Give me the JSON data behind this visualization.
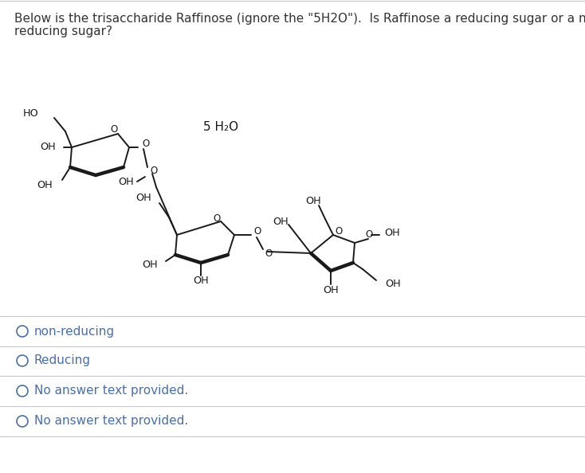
{
  "background_color": "#ffffff",
  "question_text_line1": "Below is the trisaccharide Raffinose (ignore the \"5H2O\").  Is Raffinose a reducing sugar or a non-",
  "question_text_line2": "reducing sugar?",
  "h2o_label": "5 H₂O",
  "answer_options": [
    "non-reducing",
    "Reducing",
    "No answer text provided.",
    "No answer text provided."
  ],
  "text_color": "#333333",
  "option_text_color": "#4a6fa5",
  "line_color": "#c8c8c8",
  "radio_color": "#4a6fa5",
  "question_font_size": 11.0,
  "option_font_size": 11.0,
  "struct_color": "#1a1a1a",
  "lw_thin": 1.4,
  "lw_thick": 3.2
}
